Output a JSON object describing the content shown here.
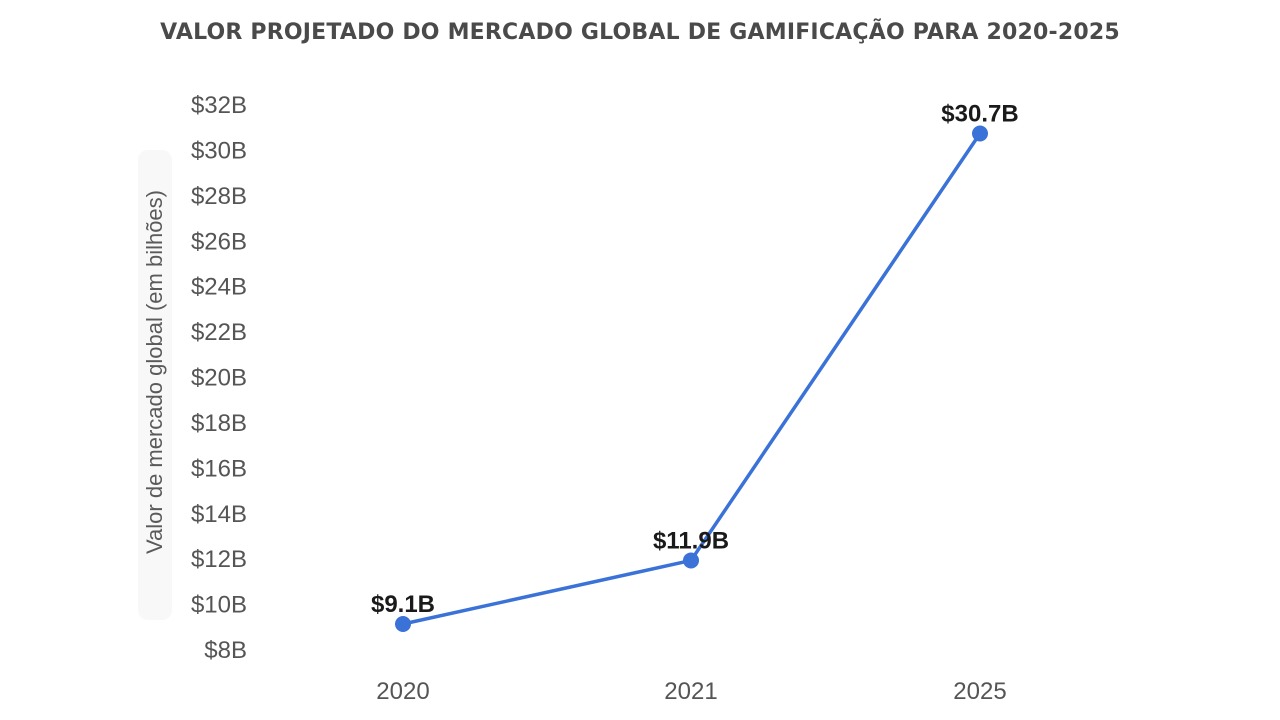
{
  "chart_data": {
    "type": "line",
    "title": "VALOR PROJETADO DO MERCADO GLOBAL DE GAMIFICAÇÃO PARA 2020-2025",
    "xlabel": "",
    "ylabel": "Valor de mercado global (em bilhões)",
    "categories": [
      "2020",
      "2021",
      "2025"
    ],
    "series": [
      {
        "values": [
          9.1,
          11.9,
          30.7
        ],
        "data_labels": [
          "$9.1B",
          "$11.9B",
          "$30.7B"
        ],
        "color": "#3a72d8"
      }
    ],
    "ylim": [
      8,
      32
    ],
    "y_ticks": [
      8,
      10,
      12,
      14,
      16,
      18,
      20,
      22,
      24,
      26,
      28,
      30,
      32
    ],
    "y_tick_labels": [
      "$8B",
      "$10B",
      "$12B",
      "$14B",
      "$16B",
      "$18B",
      "$20B",
      "$22B",
      "$24B",
      "$26B",
      "$28B",
      "$30B",
      "$32B"
    ],
    "grid": false,
    "legend": "none"
  }
}
